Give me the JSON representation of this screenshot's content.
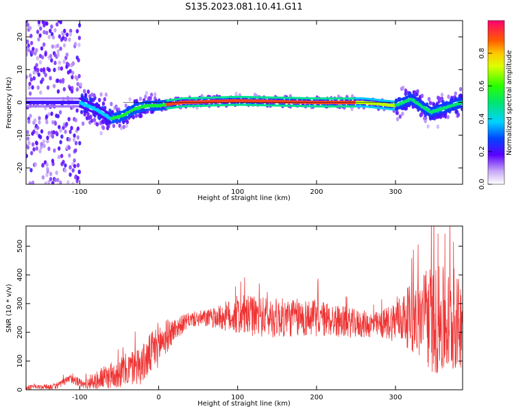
{
  "title": "S135.2023.081.10.41.G11",
  "chart_data": [
    {
      "type": "heatmap",
      "xlabel": "Height of straight line (km)",
      "ylabel": "Frequency (Hz)",
      "xlim": [
        -168,
        385
      ],
      "ylim": [
        -25,
        25
      ],
      "xticks": [
        -100,
        0,
        100,
        200,
        300
      ],
      "yticks": [
        -20,
        -10,
        0,
        10,
        20
      ],
      "colorbar": {
        "label": "Normalized spectral amplitude",
        "range": [
          0,
          1
        ],
        "ticks": [
          0.0,
          0.2,
          0.4,
          0.6,
          0.8
        ]
      },
      "ridge_frequency_hz": [
        {
          "x": -100,
          "y": 0
        },
        {
          "x": -80,
          "y": -2
        },
        {
          "x": -60,
          "y": -5
        },
        {
          "x": -45,
          "y": -4
        },
        {
          "x": -30,
          "y": -2
        },
        {
          "x": -15,
          "y": -1
        },
        {
          "x": 0,
          "y": -1
        },
        {
          "x": 30,
          "y": 0
        },
        {
          "x": 100,
          "y": 0.5
        },
        {
          "x": 200,
          "y": 0
        },
        {
          "x": 260,
          "y": 0
        },
        {
          "x": 300,
          "y": -1
        },
        {
          "x": 320,
          "y": 1
        },
        {
          "x": 345,
          "y": -3
        },
        {
          "x": 385,
          "y": 0
        }
      ],
      "grid": false
    },
    {
      "type": "line",
      "xlabel": "Height of straight line (km)",
      "ylabel": "SNR (10 * v/v)",
      "xlim": [
        -168,
        385
      ],
      "ylim": [
        0,
        570
      ],
      "xticks": [
        -100,
        0,
        100,
        200,
        300
      ],
      "yticks": [
        0,
        100,
        200,
        300,
        400,
        500
      ],
      "series_color": "#ee3333",
      "envelope": [
        {
          "x": -168,
          "mean": 8,
          "spread": 8
        },
        {
          "x": -130,
          "mean": 12,
          "spread": 10
        },
        {
          "x": -110,
          "mean": 40,
          "spread": 18
        },
        {
          "x": -95,
          "mean": 18,
          "spread": 15
        },
        {
          "x": -70,
          "mean": 40,
          "spread": 40
        },
        {
          "x": -40,
          "mean": 70,
          "spread": 60
        },
        {
          "x": -20,
          "mean": 90,
          "spread": 70
        },
        {
          "x": 0,
          "mean": 160,
          "spread": 80
        },
        {
          "x": 20,
          "mean": 210,
          "spread": 40
        },
        {
          "x": 40,
          "mean": 245,
          "spread": 25
        },
        {
          "x": 70,
          "mean": 250,
          "spread": 35
        },
        {
          "x": 100,
          "mean": 260,
          "spread": 70
        },
        {
          "x": 150,
          "mean": 250,
          "spread": 70
        },
        {
          "x": 200,
          "mean": 250,
          "spread": 65
        },
        {
          "x": 250,
          "mean": 230,
          "spread": 50
        },
        {
          "x": 280,
          "mean": 225,
          "spread": 45
        },
        {
          "x": 310,
          "mean": 250,
          "spread": 90
        },
        {
          "x": 340,
          "mean": 250,
          "spread": 180
        },
        {
          "x": 360,
          "mean": 230,
          "spread": 200
        },
        {
          "x": 385,
          "mean": 230,
          "spread": 150
        }
      ],
      "grid": false
    }
  ]
}
